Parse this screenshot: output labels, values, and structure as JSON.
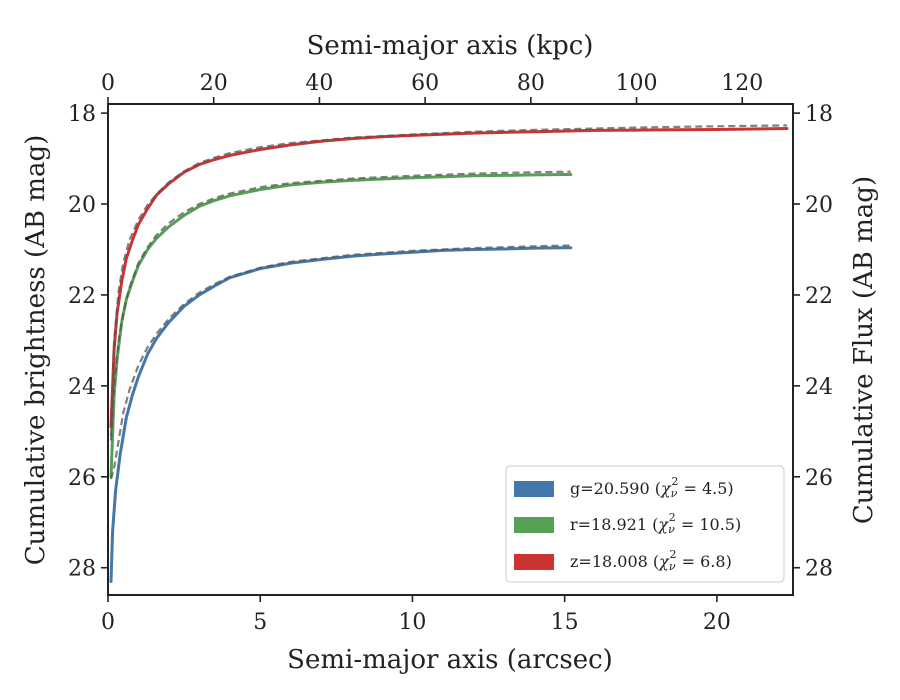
{
  "chart_data": {
    "type": "line",
    "xlabel": "Semi-major axis (arcsec)",
    "xlabel_top": "Semi-major axis (kpc)",
    "ylabel": "Cumulative brightness (AB mag)",
    "ylabel_right": "Cumulative Flux (AB mag)",
    "xlim": [
      0,
      22.5
    ],
    "xlim_top": [
      0,
      129.6
    ],
    "ylim": [
      28.6,
      17.8
    ],
    "y_inverted": true,
    "x_ticks": [
      "0",
      "5",
      "10",
      "15",
      "20"
    ],
    "x_top_ticks": [
      "0",
      "20",
      "40",
      "60",
      "80",
      "100",
      "120"
    ],
    "y_ticks": [
      "18",
      "20",
      "22",
      "24",
      "26",
      "28"
    ],
    "legend_position": "lower-right",
    "grid": false,
    "series": [
      {
        "band": "g",
        "color": "#4477aa",
        "legend_main": "g=20.590 (",
        "legend_chi": "4.5",
        "x": [
          0.1,
          0.15,
          0.25,
          0.4,
          0.6,
          0.8,
          1.0,
          1.3,
          1.6,
          2.0,
          2.5,
          3.0,
          3.5,
          4.0,
          5.0,
          6.0,
          7.0,
          8.0,
          9.0,
          10.0,
          11.0,
          12.0,
          13.0,
          14.0,
          15.0,
          15.2
        ],
        "y": [
          28.3,
          27.2,
          26.3,
          25.5,
          24.7,
          24.2,
          23.8,
          23.3,
          22.95,
          22.6,
          22.25,
          22.0,
          21.8,
          21.62,
          21.42,
          21.3,
          21.22,
          21.15,
          21.1,
          21.06,
          21.02,
          21.0,
          20.99,
          20.97,
          20.96,
          20.96
        ]
      },
      {
        "band": "r",
        "color": "#55a055",
        "legend_main": "r=18.921 (",
        "legend_chi": "10.5",
        "x": [
          0.1,
          0.2,
          0.3,
          0.45,
          0.6,
          0.8,
          1.0,
          1.3,
          1.6,
          2.0,
          2.5,
          3.0,
          3.5,
          4.0,
          5.0,
          6.0,
          7.0,
          8.0,
          9.0,
          10.0,
          11.0,
          12.0,
          13.0,
          14.0,
          15.0,
          15.2
        ],
        "y": [
          26.0,
          24.2,
          23.4,
          22.6,
          22.1,
          21.7,
          21.35,
          21.0,
          20.75,
          20.5,
          20.25,
          20.05,
          19.92,
          19.82,
          19.68,
          19.58,
          19.52,
          19.48,
          19.45,
          19.42,
          19.4,
          19.38,
          19.37,
          19.36,
          19.35,
          19.35
        ]
      },
      {
        "band": "z",
        "color": "#cc3333",
        "legend_main": "z=18.008 (",
        "legend_chi": "6.8",
        "x": [
          0.1,
          0.2,
          0.3,
          0.45,
          0.6,
          0.8,
          1.0,
          1.3,
          1.6,
          2.0,
          2.5,
          3.0,
          3.5,
          4.0,
          5.0,
          6.0,
          7.0,
          8.0,
          9.0,
          10.0,
          12.0,
          14.0,
          16.0,
          18.0,
          20.0,
          22.3
        ],
        "y": [
          24.9,
          23.2,
          22.4,
          21.7,
          21.2,
          20.8,
          20.45,
          20.1,
          19.8,
          19.55,
          19.3,
          19.13,
          19.02,
          18.93,
          18.8,
          18.7,
          18.62,
          18.56,
          18.52,
          18.49,
          18.44,
          18.41,
          18.38,
          18.37,
          18.36,
          18.34
        ]
      }
    ],
    "fits": [
      {
        "band": "g",
        "x": [
          0.1,
          0.2,
          0.35,
          0.5,
          0.7,
          1.0,
          1.3,
          1.6,
          2.0,
          2.5,
          3.0,
          3.5,
          4.0,
          5.0,
          6.0,
          8.0,
          10.0,
          12.0,
          14.0,
          15.2
        ],
        "y": [
          26.05,
          25.8,
          25.2,
          24.6,
          24.1,
          23.55,
          23.15,
          22.85,
          22.52,
          22.2,
          21.95,
          21.76,
          21.6,
          21.4,
          21.27,
          21.12,
          21.03,
          20.97,
          20.93,
          20.91
        ]
      },
      {
        "band": "r",
        "x": [
          0.1,
          0.2,
          0.35,
          0.5,
          0.7,
          1.0,
          1.3,
          1.6,
          2.0,
          2.5,
          3.0,
          3.5,
          4.0,
          5.0,
          6.0,
          8.0,
          10.0,
          12.0,
          14.0,
          15.2
        ],
        "y": [
          25.2,
          24.0,
          23.0,
          22.4,
          21.85,
          21.3,
          20.95,
          20.68,
          20.42,
          20.18,
          20.0,
          19.87,
          19.77,
          19.63,
          19.54,
          19.44,
          19.38,
          19.33,
          19.3,
          19.29
        ]
      },
      {
        "band": "z",
        "x": [
          0.1,
          0.2,
          0.35,
          0.5,
          0.7,
          1.0,
          1.3,
          1.6,
          2.0,
          2.5,
          3.0,
          3.5,
          4.0,
          5.0,
          6.0,
          8.0,
          10.0,
          12.0,
          14.0,
          16.0,
          18.0,
          20.0,
          22.3
        ],
        "y": [
          25.1,
          23.0,
          21.9,
          21.3,
          20.8,
          20.35,
          20.02,
          19.78,
          19.52,
          19.28,
          19.1,
          18.98,
          18.88,
          18.75,
          18.66,
          18.54,
          18.47,
          18.41,
          18.37,
          18.34,
          18.31,
          18.29,
          18.27
        ]
      }
    ]
  }
}
